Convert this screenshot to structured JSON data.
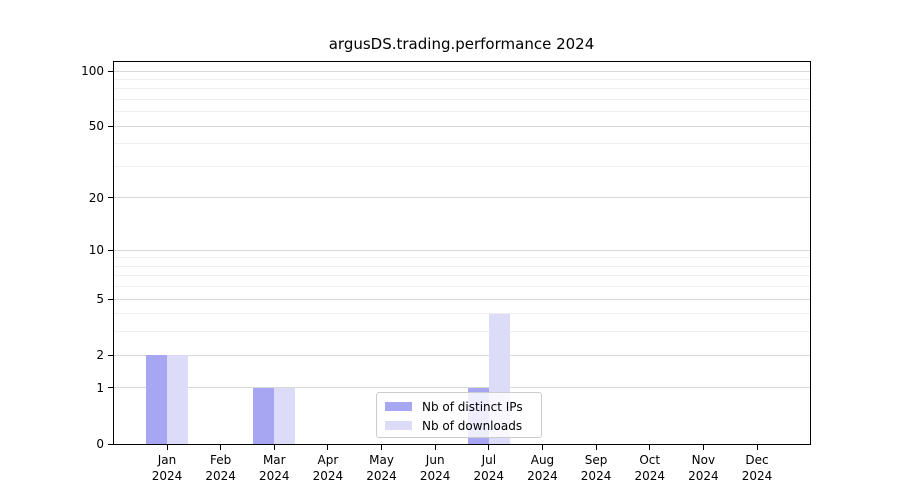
{
  "chart_data": {
    "type": "bar",
    "title": "argusDS.trading.performance 2024",
    "categories": [
      "Jan",
      "Feb",
      "Mar",
      "Apr",
      "May",
      "Jun",
      "Jul",
      "Aug",
      "Sep",
      "Oct",
      "Nov",
      "Dec"
    ],
    "year_label": "2024",
    "series": [
      {
        "name": "Nb of distinct IPs",
        "color": "#a6a6f2",
        "values": [
          2,
          0,
          1,
          0,
          0,
          0,
          1,
          0,
          0,
          0,
          0,
          0
        ]
      },
      {
        "name": "Nb of downloads",
        "color": "#dcdcf8",
        "values": [
          2,
          0,
          1,
          0,
          0,
          0,
          4,
          0,
          0,
          0,
          0,
          0
        ]
      }
    ],
    "y_axis": {
      "scale": "log1p",
      "major_ticks": [
        0,
        1,
        2,
        5,
        10,
        20,
        50,
        100
      ],
      "minor_gridlines": [
        3,
        4,
        6,
        7,
        8,
        9,
        30,
        40,
        60,
        70,
        80,
        90
      ],
      "ylim": [
        0,
        113
      ]
    },
    "legend": {
      "position": "lower-center",
      "labels": [
        "Nb of distinct IPs",
        "Nb of downloads"
      ]
    },
    "grid": "horizontal-only"
  },
  "colors": {
    "grid_major": "#d7d7d7",
    "grid_minor": "#eeeeee",
    "axis": "#000000",
    "background": "#ffffff",
    "legend_border": "#cccccc"
  }
}
